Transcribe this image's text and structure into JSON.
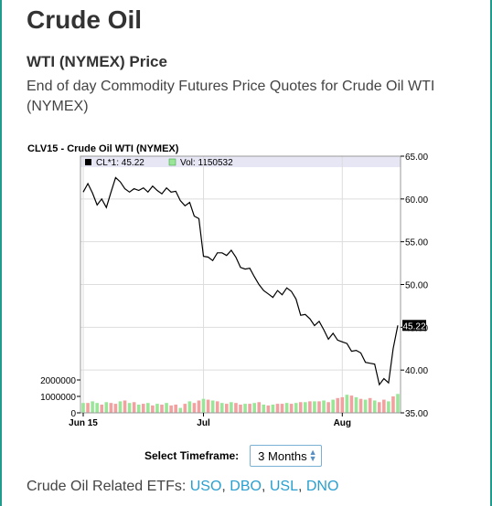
{
  "page": {
    "title": "Crude Oil",
    "subtitle": "WTI (NYMEX) Price",
    "description": "End of day Commodity Futures Price Quotes for Crude Oil WTI (NYMEX)"
  },
  "timeframe": {
    "label": "Select Timeframe:",
    "value": "3 Months"
  },
  "etfs": {
    "prefix": "Crude Oil Related ETFs:",
    "items": [
      "USO",
      "DBO",
      "USL",
      "DNO"
    ]
  },
  "colors": {
    "frame": "#1f9c8c",
    "legend_bg": "#e6e6f5",
    "vol_up": "#99e699",
    "vol_down": "#f2a0a0",
    "link": "#2a9fcf"
  },
  "chart_data": {
    "type": "line",
    "title": "CLV15 - Crude Oil WTI (NYMEX)",
    "legend": [
      {
        "label": "CL*1: 45.22",
        "color": "#000000"
      },
      {
        "label": "Vol: 1150532",
        "color": "#99e699"
      }
    ],
    "last_price_label": "45.22",
    "x_ticks": [
      "Jun 15",
      "Jul",
      "Aug"
    ],
    "price_axis": {
      "side": "right",
      "ticks": [
        "65.00",
        "60.00",
        "55.00",
        "50.00",
        "45.00",
        "40.00",
        "35.00"
      ],
      "ylim": [
        35,
        65
      ]
    },
    "volume_axis": {
      "side": "left",
      "ticks": [
        "2000000",
        "1000000",
        "0"
      ],
      "ylim": [
        0,
        2000000
      ]
    },
    "grid": true,
    "series": [
      {
        "name": "CL*1",
        "values": [
          60.8,
          61.8,
          60.7,
          59.3,
          60.0,
          59.0,
          60.8,
          62.5,
          62.0,
          61.2,
          60.8,
          61.2,
          61.0,
          61.3,
          60.8,
          61.5,
          61.0,
          60.6,
          61.3,
          60.8,
          60.9,
          59.8,
          59.2,
          59.6,
          58.0,
          57.7,
          53.3,
          53.2,
          52.8,
          53.7,
          53.7,
          53.4,
          54.0,
          53.2,
          52.0,
          51.8,
          51.9,
          50.9,
          50.0,
          49.3,
          48.9,
          48.5,
          49.3,
          48.8,
          49.6,
          49.2,
          48.3,
          46.4,
          46.5,
          46.0,
          45.2,
          45.7,
          44.7,
          43.6,
          44.3,
          43.5,
          43.3,
          43.1,
          42.2,
          42.3,
          42.0,
          40.9,
          40.8,
          40.7,
          38.3,
          39.0,
          38.5,
          42.5,
          45.22
        ]
      },
      {
        "name": "Vol",
        "up_days": [
          0,
          2,
          3,
          5,
          8,
          10,
          12,
          14,
          16,
          18,
          21,
          23,
          26,
          28,
          30,
          32,
          35,
          37,
          39,
          41,
          44,
          46,
          48,
          50,
          52,
          54,
          57,
          59,
          61,
          63,
          66,
          68
        ],
        "values": [
          600000,
          600000,
          700000,
          600000,
          500000,
          650000,
          600000,
          550000,
          700000,
          750000,
          600000,
          650000,
          500000,
          550000,
          600000,
          450000,
          550000,
          500000,
          600000,
          450000,
          500000,
          300000,
          550000,
          700000,
          600000,
          750000,
          850000,
          800000,
          750000,
          700000,
          600000,
          550000,
          650000,
          600000,
          500000,
          550000,
          550000,
          600000,
          650000,
          500000,
          450000,
          500000,
          550000,
          550000,
          600000,
          550000,
          600000,
          650000,
          650000,
          700000,
          700000,
          700000,
          750000,
          650000,
          800000,
          900000,
          950000,
          1100000,
          1050000,
          950000,
          850000,
          800000,
          900000,
          750000,
          650000,
          800000,
          700000,
          1000000,
          1150532
        ]
      }
    ]
  }
}
